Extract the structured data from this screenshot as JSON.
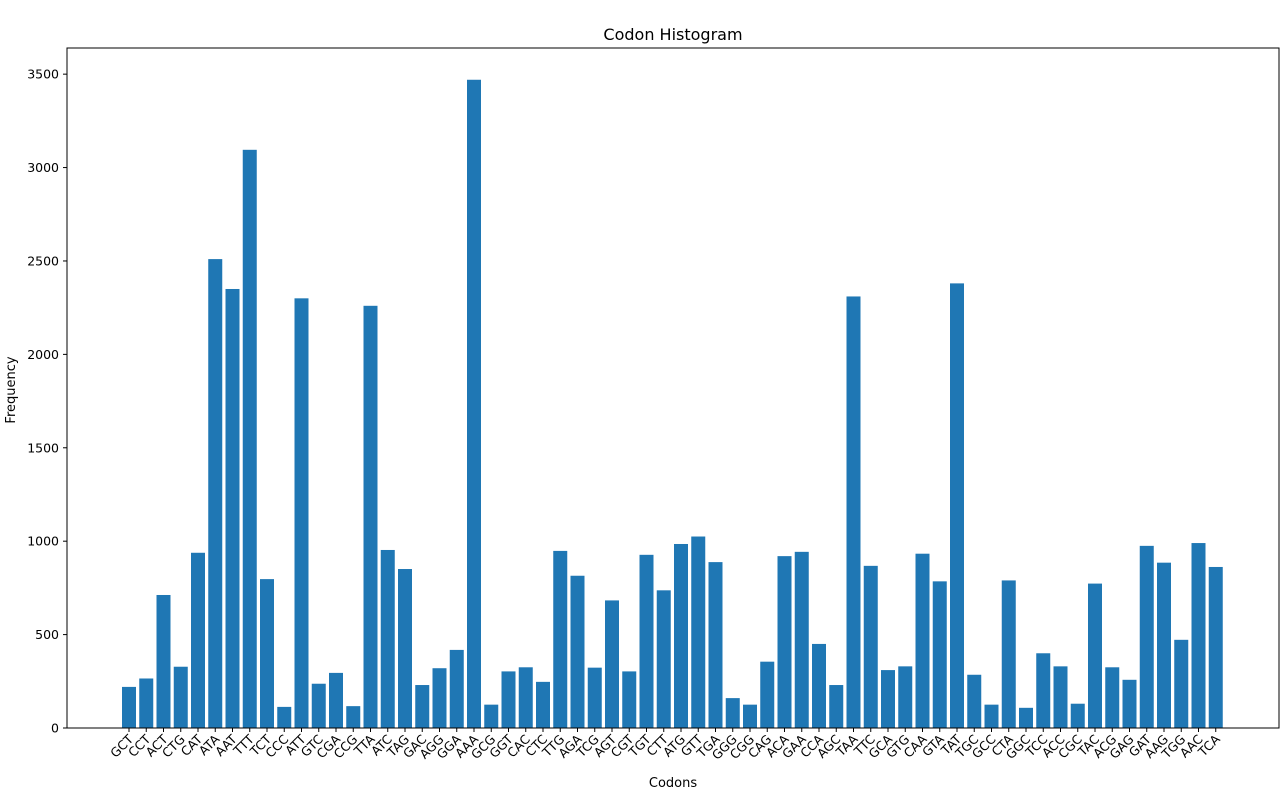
{
  "chart_data": {
    "type": "bar",
    "title": "Codon Histogram",
    "xlabel": "Codons",
    "ylabel": "Frequency",
    "ylim": [
      0,
      3640
    ],
    "yticks": [
      0,
      500,
      1000,
      1500,
      2000,
      2500,
      3000,
      3500
    ],
    "grid": false,
    "bar_color": "#1f77b4",
    "categories": [
      "GCT",
      "CCT",
      "ACT",
      "CTG",
      "CAT",
      "ATA",
      "AAT",
      "TTT",
      "TCT",
      "CCC",
      "ATT",
      "GTC",
      "CGA",
      "CCG",
      "TTA",
      "ATC",
      "TAG",
      "GAC",
      "AGG",
      "GGA",
      "AAA",
      "GCG",
      "GGT",
      "CAC",
      "CTC",
      "TTG",
      "AGA",
      "TCG",
      "AGT",
      "CGT",
      "TGT",
      "CTT",
      "ATG",
      "GTT",
      "TGA",
      "GGG",
      "CGG",
      "CAG",
      "ACA",
      "GAA",
      "CCA",
      "AGC",
      "TAA",
      "TTC",
      "GCA",
      "GTG",
      "CAA",
      "GTA",
      "TAT",
      "TGC",
      "GCC",
      "CTA",
      "GGC",
      "TCC",
      "ACC",
      "CGC",
      "TAC",
      "ACG",
      "GAG",
      "GAT",
      "AAG",
      "TGG",
      "AAC",
      "TCA"
    ],
    "values": [
      220,
      265,
      712,
      328,
      938,
      2510,
      2350,
      3095,
      797,
      113,
      2300,
      237,
      295,
      117,
      2260,
      953,
      851,
      230,
      320,
      418,
      3470,
      125,
      303,
      325,
      247,
      948,
      815,
      323,
      683,
      303,
      927,
      737,
      985,
      1025,
      888,
      160,
      125,
      355,
      920,
      943,
      450,
      230,
      2310,
      868,
      310,
      330,
      933,
      785,
      2380,
      285,
      125,
      790,
      108,
      400,
      330,
      130,
      773,
      325,
      258,
      975,
      885,
      472,
      990,
      862
    ]
  }
}
